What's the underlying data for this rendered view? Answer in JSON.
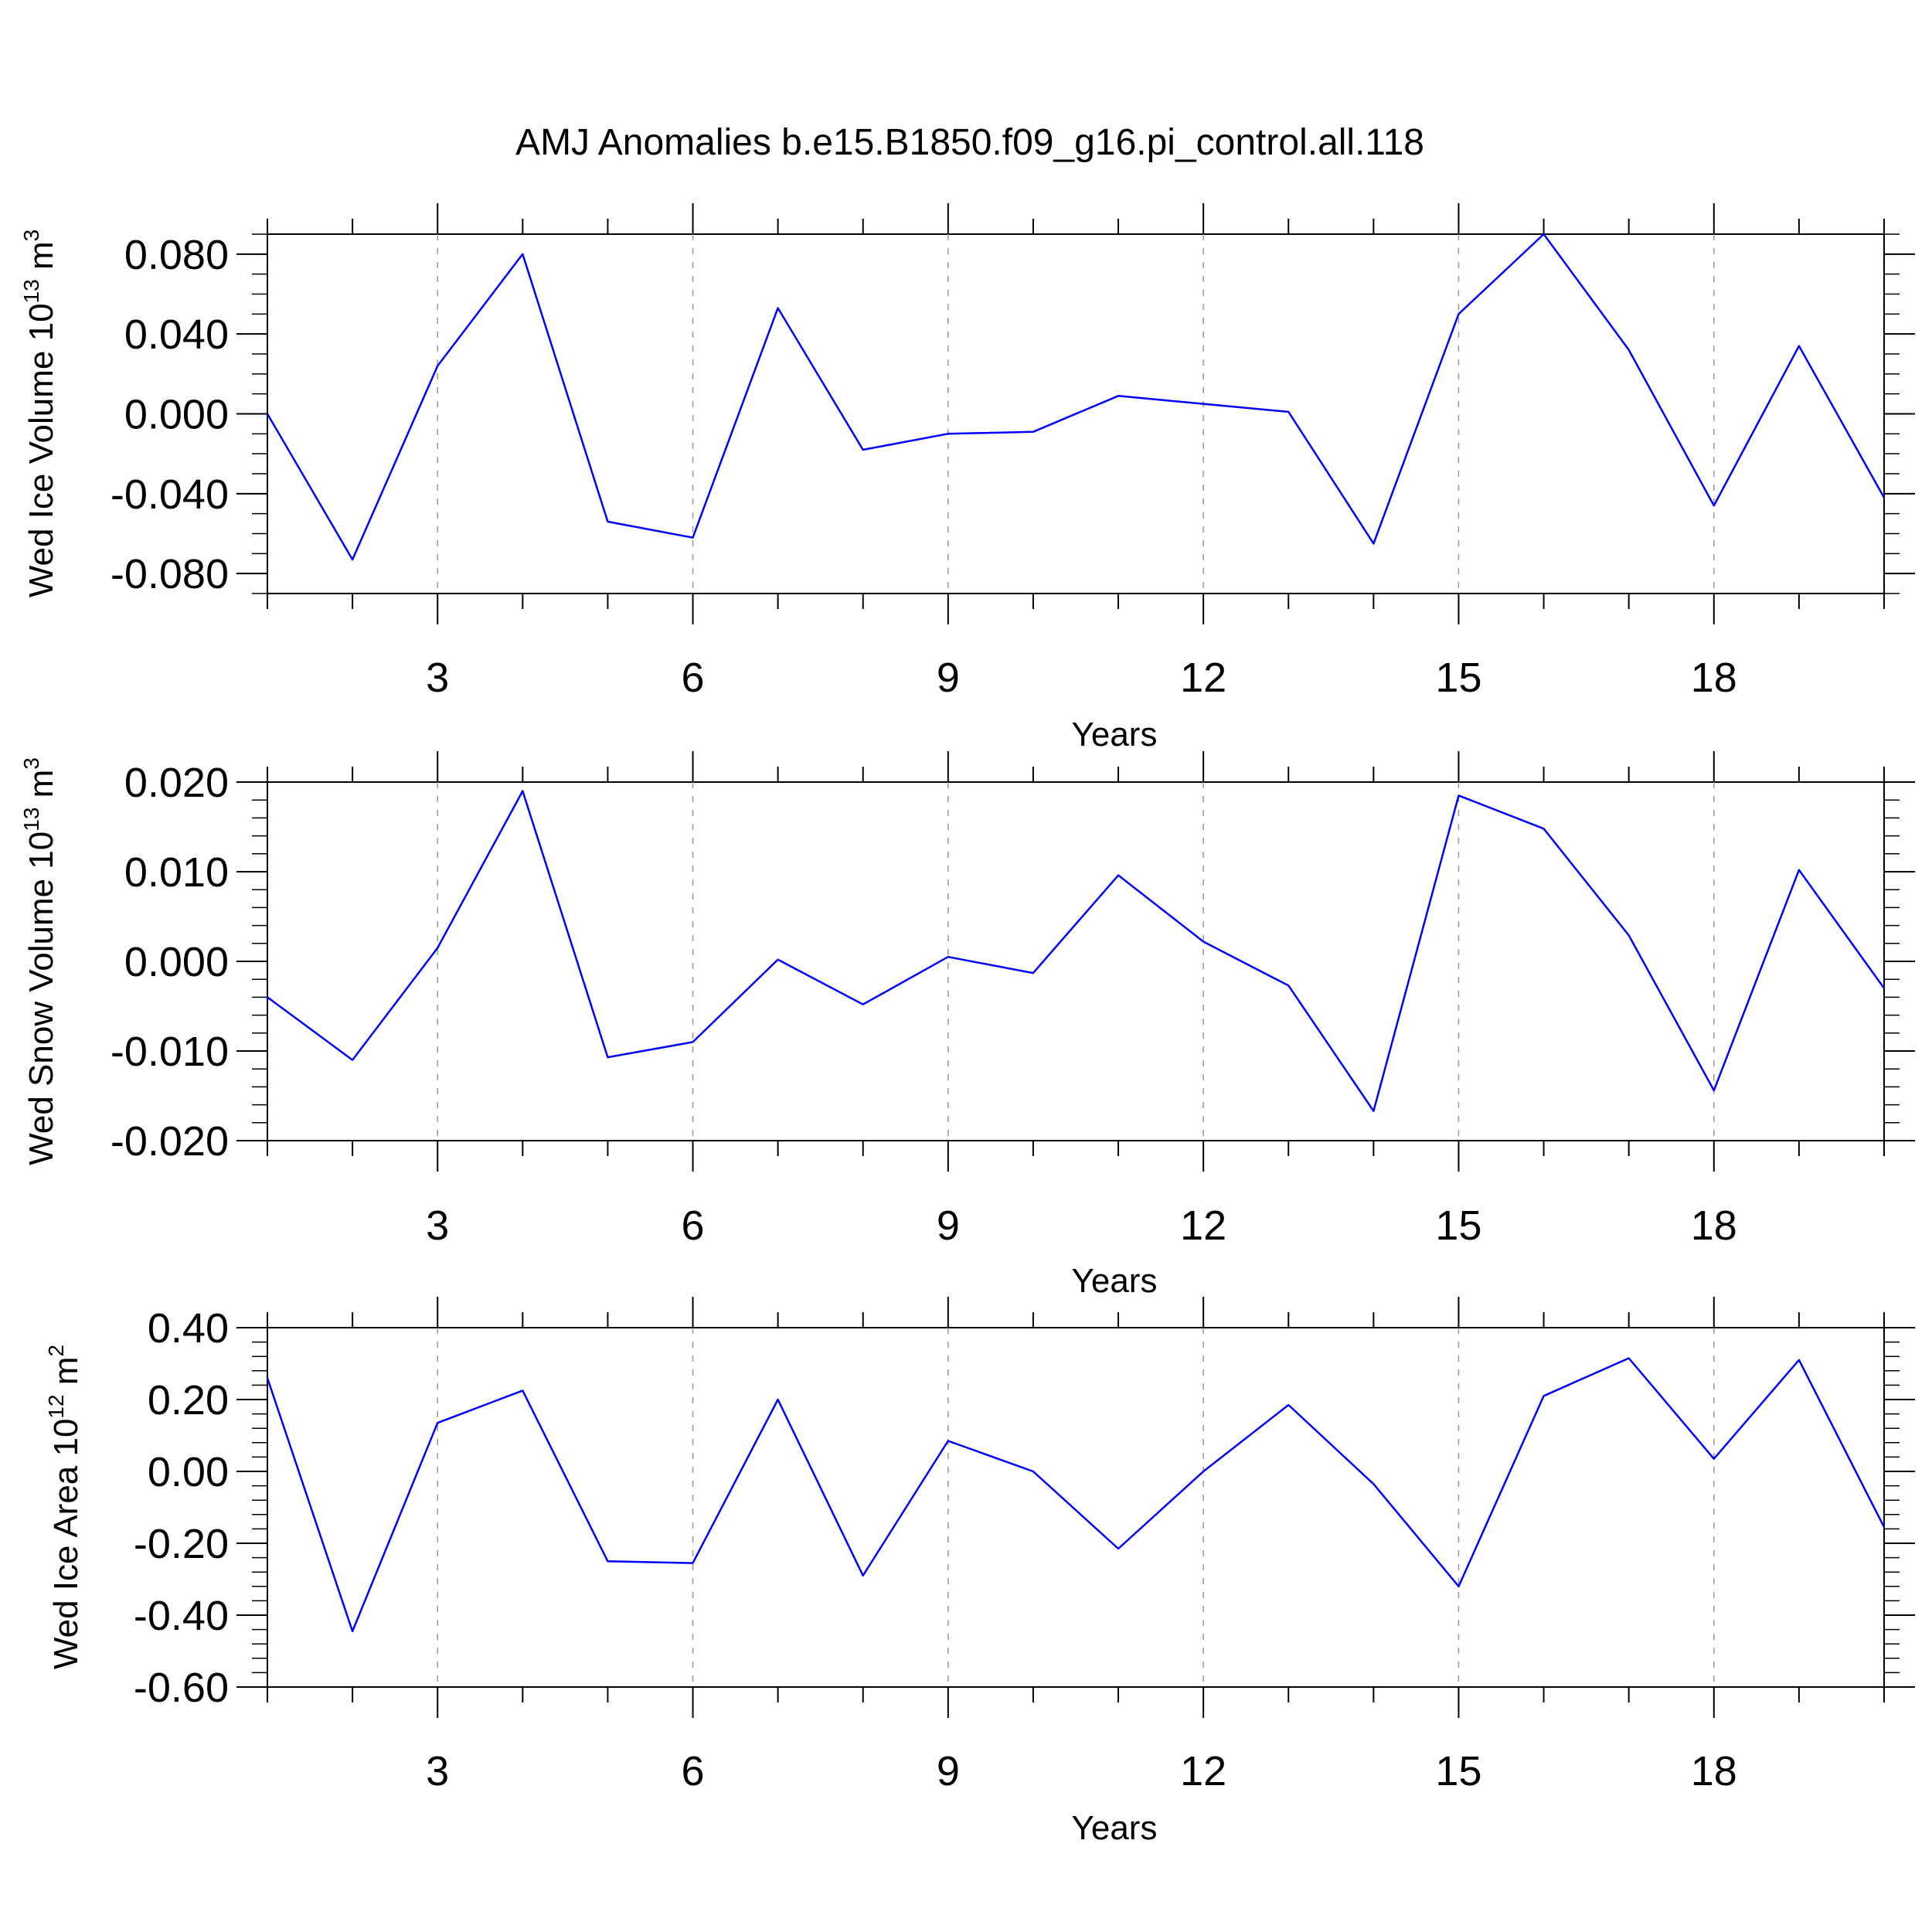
{
  "figure": {
    "title": "AMJ Anomalies b.e15.B1850.f09_g16.pi_control.all.118",
    "line_color": "#0000ff"
  },
  "chart_data": [
    {
      "type": "line",
      "name": "ice-volume",
      "ylabel": "Wed Ice Volume 10",
      "ylabel_exp": "13",
      "ylabel_unit": " m",
      "ylabel_unit_exp": "3",
      "xlabel": "Years",
      "xlim": [
        1,
        20
      ],
      "ylim": [
        -0.09,
        0.09
      ],
      "y_ticks": [
        -0.08,
        -0.04,
        0.0,
        0.04,
        0.08
      ],
      "y_tick_labels": [
        "-0.080",
        "-0.040",
        "0.000",
        "0.040",
        "0.080"
      ],
      "y_minor_step": 0.01,
      "x_ticks": [
        3,
        6,
        9,
        12,
        15,
        18
      ],
      "x_tick_labels": [
        "3",
        "6",
        "9",
        "12",
        "15",
        "18"
      ],
      "grid": "vertical dashed at labeled years",
      "x": [
        1,
        2,
        3,
        4,
        5,
        6,
        7,
        8,
        9,
        10,
        11,
        12,
        13,
        14,
        15,
        16,
        17,
        18,
        19,
        20
      ],
      "values": [
        0.0,
        -0.073,
        0.024,
        0.08,
        -0.054,
        -0.062,
        0.053,
        -0.018,
        -0.01,
        -0.009,
        0.009,
        0.005,
        0.001,
        -0.065,
        0.05,
        0.09,
        0.032,
        -0.046,
        0.034,
        -0.042
      ]
    },
    {
      "type": "line",
      "name": "snow-volume",
      "ylabel": "Wed Snow Volume 10",
      "ylabel_exp": "13",
      "ylabel_unit": " m",
      "ylabel_unit_exp": "3",
      "xlabel": "Years",
      "xlim": [
        1,
        20
      ],
      "ylim": [
        -0.02,
        0.02
      ],
      "y_ticks": [
        -0.02,
        -0.01,
        0.0,
        0.01,
        0.02
      ],
      "y_tick_labels": [
        "-0.020",
        "-0.010",
        "0.000",
        "0.010",
        "0.020"
      ],
      "y_minor_step": 0.002,
      "x_ticks": [
        3,
        6,
        9,
        12,
        15,
        18
      ],
      "x_tick_labels": [
        "3",
        "6",
        "9",
        "12",
        "15",
        "18"
      ],
      "grid": "vertical dashed at labeled years",
      "x": [
        1,
        2,
        3,
        4,
        5,
        6,
        7,
        8,
        9,
        10,
        11,
        12,
        13,
        14,
        15,
        16,
        17,
        18,
        19,
        20
      ],
      "values": [
        -0.004,
        -0.011,
        0.0015,
        0.019,
        -0.0107,
        -0.009,
        0.0002,
        -0.0048,
        0.0005,
        -0.0013,
        0.0096,
        0.0022,
        -0.0027,
        -0.0167,
        0.0185,
        0.0148,
        0.0029,
        -0.0144,
        0.0102,
        -0.003
      ]
    },
    {
      "type": "line",
      "name": "ice-area",
      "ylabel": "Wed Ice Area 10",
      "ylabel_exp": "12",
      "ylabel_unit": " m",
      "ylabel_unit_exp": "2",
      "xlabel": "Years",
      "xlim": [
        1,
        20
      ],
      "ylim": [
        -0.6,
        0.4
      ],
      "y_ticks": [
        -0.6,
        -0.4,
        -0.2,
        0.0,
        0.2,
        0.4
      ],
      "y_tick_labels": [
        "-0.60",
        "-0.40",
        "-0.20",
        "0.00",
        "0.20",
        "0.40"
      ],
      "y_minor_step": 0.04,
      "x_ticks": [
        3,
        6,
        9,
        12,
        15,
        18
      ],
      "x_tick_labels": [
        "3",
        "6",
        "9",
        "12",
        "15",
        "18"
      ],
      "grid": "vertical dashed at labeled years",
      "x": [
        1,
        2,
        3,
        4,
        5,
        6,
        7,
        8,
        9,
        10,
        11,
        12,
        13,
        14,
        15,
        16,
        17,
        18,
        19,
        20
      ],
      "values": [
        0.26,
        -0.445,
        0.135,
        0.225,
        -0.25,
        -0.255,
        0.2,
        -0.29,
        0.085,
        0.0,
        -0.215,
        0.0,
        0.185,
        -0.035,
        -0.32,
        0.21,
        0.315,
        0.035,
        0.31,
        -0.155
      ]
    }
  ]
}
